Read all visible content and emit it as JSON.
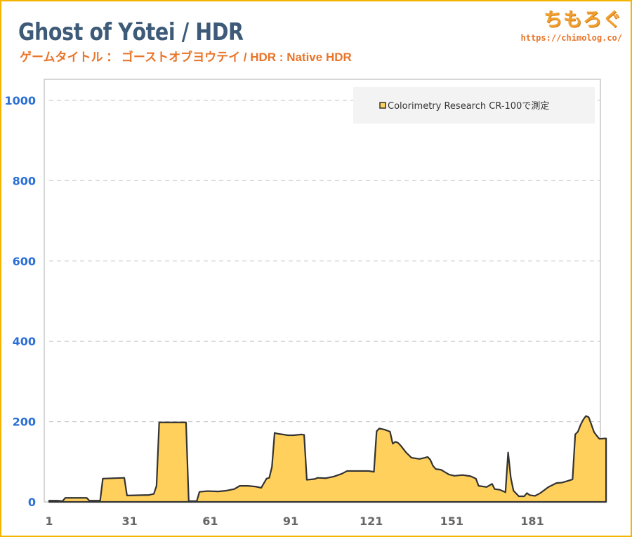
{
  "header": {
    "title": "Ghost of Yōtei / HDR",
    "subtitle": "ゲームタイトル ： ゴーストオブヨウテイ / HDR : Native HDR"
  },
  "brand": {
    "name": "ちもろぐ",
    "url": "https://chimolog.co/"
  },
  "colors": {
    "border": "#f4b400",
    "fill": "#ffd15c",
    "line": "#333333",
    "title": "#3d5a78",
    "subtitle": "#e8752a",
    "y_ticks": "#2b6fd6"
  },
  "chart_data": {
    "type": "area",
    "title": "Ghost of Yōtei / HDR",
    "subtitle": "ゲームタイトル ： ゴーストオブヨウテイ / HDR : Native HDR",
    "xlabel": "",
    "ylabel": "",
    "xlim": [
      1,
      210
    ],
    "ylim": [
      0,
      1050
    ],
    "x_ticks": [
      "1",
      "31",
      "61",
      "91",
      "121",
      "151",
      "181"
    ],
    "x_tick_values": [
      1,
      31,
      61,
      91,
      121,
      151,
      181
    ],
    "y_ticks": [
      "0",
      "200",
      "400",
      "600",
      "800",
      "1000"
    ],
    "y_tick_values": [
      0,
      200,
      400,
      600,
      800,
      1000
    ],
    "grid": "horizontal dashed",
    "legend_position": "top-right",
    "series": [
      {
        "name": "Colorimetry Research CR-100で測定",
        "points": [
          [
            1,
            3
          ],
          [
            4,
            3
          ],
          [
            6,
            2
          ],
          [
            7,
            10
          ],
          [
            15,
            10
          ],
          [
            16,
            3
          ],
          [
            20,
            3
          ],
          [
            21,
            58
          ],
          [
            29,
            60
          ],
          [
            30,
            16
          ],
          [
            37,
            17
          ],
          [
            38,
            17
          ],
          [
            40,
            20
          ],
          [
            41,
            40
          ],
          [
            42,
            198
          ],
          [
            52,
            198
          ],
          [
            53,
            2
          ],
          [
            56,
            2
          ],
          [
            57,
            25
          ],
          [
            60,
            27
          ],
          [
            64,
            26
          ],
          [
            67,
            28
          ],
          [
            70,
            32
          ],
          [
            72,
            40
          ],
          [
            75,
            40
          ],
          [
            78,
            38
          ],
          [
            80,
            35
          ],
          [
            82,
            58
          ],
          [
            83,
            60
          ],
          [
            84,
            87
          ],
          [
            85,
            172
          ],
          [
            86,
            170
          ],
          [
            88,
            168
          ],
          [
            90,
            166
          ],
          [
            92,
            166
          ],
          [
            95,
            168
          ],
          [
            96,
            167
          ],
          [
            97,
            55
          ],
          [
            100,
            57
          ],
          [
            101,
            60
          ],
          [
            104,
            59
          ],
          [
            107,
            63
          ],
          [
            110,
            70
          ],
          [
            112,
            77
          ],
          [
            120,
            77
          ],
          [
            122,
            75
          ],
          [
            123,
            176
          ],
          [
            124,
            183
          ],
          [
            126,
            180
          ],
          [
            128,
            175
          ],
          [
            129,
            145
          ],
          [
            130,
            150
          ],
          [
            131,
            147
          ],
          [
            132,
            140
          ],
          [
            134,
            123
          ],
          [
            136,
            110
          ],
          [
            139,
            107
          ],
          [
            141,
            110
          ],
          [
            142,
            112
          ],
          [
            143,
            105
          ],
          [
            144,
            90
          ],
          [
            145,
            82
          ],
          [
            147,
            80
          ],
          [
            150,
            68
          ],
          [
            152,
            65
          ],
          [
            155,
            67
          ],
          [
            158,
            64
          ],
          [
            160,
            58
          ],
          [
            161,
            40
          ],
          [
            164,
            37
          ],
          [
            166,
            45
          ],
          [
            167,
            32
          ],
          [
            169,
            30
          ],
          [
            171,
            24
          ],
          [
            172,
            123
          ],
          [
            173,
            60
          ],
          [
            174,
            28
          ],
          [
            176,
            14
          ],
          [
            178,
            14
          ],
          [
            179,
            22
          ],
          [
            180,
            17
          ],
          [
            182,
            15
          ],
          [
            184,
            22
          ],
          [
            187,
            37
          ],
          [
            190,
            47
          ],
          [
            192,
            48
          ],
          [
            194,
            52
          ],
          [
            196,
            56
          ],
          [
            197,
            168
          ],
          [
            198,
            175
          ],
          [
            199,
            192
          ],
          [
            200,
            205
          ],
          [
            201,
            214
          ],
          [
            202,
            211
          ],
          [
            203,
            193
          ],
          [
            204,
            174
          ],
          [
            205,
            165
          ],
          [
            206,
            157
          ],
          [
            208,
            158
          ],
          [
            208.5,
            158
          ]
        ]
      }
    ]
  }
}
